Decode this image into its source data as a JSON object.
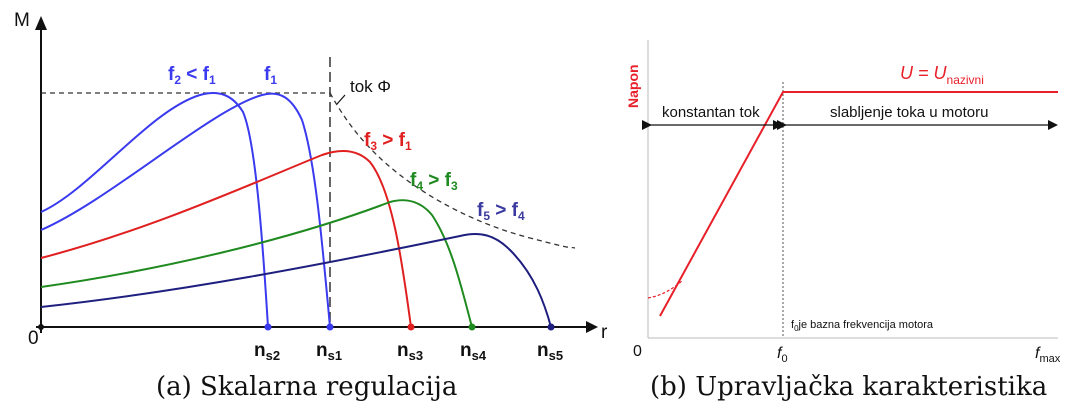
{
  "figure": {
    "caption_a": "(a) Skalarna regulacija",
    "caption_b": "(b) Upravljačka karakteristika"
  },
  "panel_a": {
    "y_axis_label": "M",
    "x_axis_label": "r",
    "origin_label": "0",
    "flux_label": "tok Φ",
    "curves": [
      {
        "name": "f₂ < f₁",
        "color": "#3a3aef",
        "label_color": "#3a3aef",
        "sync_label": "ns2"
      },
      {
        "name": "f₁",
        "color": "#3a3aef",
        "label_color": "#3a3aef",
        "sync_label": "ns1"
      },
      {
        "name": "f₃ > f₁",
        "color": "#e02020",
        "label_color": "#e02020",
        "sync_label": "ns3"
      },
      {
        "name": "f₄ > f₃",
        "color": "#1f8a1f",
        "label_color": "#1f8a1f",
        "sync_label": "ns4"
      },
      {
        "name": "f₅ > f₄",
        "color": "#1f1f80",
        "label_color": "#3a3aa0",
        "sync_label": "ns5"
      }
    ],
    "sync_labels": {
      "ns2": {
        "main": "n",
        "sub": "s2"
      },
      "ns1": {
        "main": "n",
        "sub": "s1"
      },
      "ns3": {
        "main": "n",
        "sub": "s3"
      },
      "ns4": {
        "main": "n",
        "sub": "s4"
      },
      "ns5": {
        "main": "n",
        "sub": "s5"
      }
    },
    "curve_labels": [
      {
        "main": "f",
        "sub": "2",
        "rest": " < f",
        "sub2": "1",
        "color": "#3a3aef"
      },
      {
        "main": "f",
        "sub": "1",
        "rest": "",
        "sub2": "",
        "color": "#3a3aef"
      },
      {
        "main": "f",
        "sub": "3",
        "rest": " > f",
        "sub2": "1",
        "color": "#e02020"
      },
      {
        "main": "f",
        "sub": "4",
        "rest": " > f",
        "sub2": "3",
        "color": "#1f8a1f"
      },
      {
        "main": "f",
        "sub": "5",
        "rest": " > f",
        "sub2": "4",
        "color": "#3a3aa0"
      }
    ]
  },
  "panel_b": {
    "y_axis_label": "Napon",
    "origin_label": "0",
    "voltage_label_main": "U = U",
    "voltage_label_sub": "nazivni",
    "region_left": "konstantan tok",
    "region_right": "slabljenje toka u motoru",
    "base_freq_note_main": "f",
    "base_freq_note_sub": "0",
    "base_freq_note_rest": "je bazna frekvencija motora",
    "x_tick_f0_main": "f",
    "x_tick_f0_sub": "0",
    "x_tick_fmax_main": "f",
    "x_tick_fmax_sub": "max",
    "line_color": "#e8202a"
  }
}
